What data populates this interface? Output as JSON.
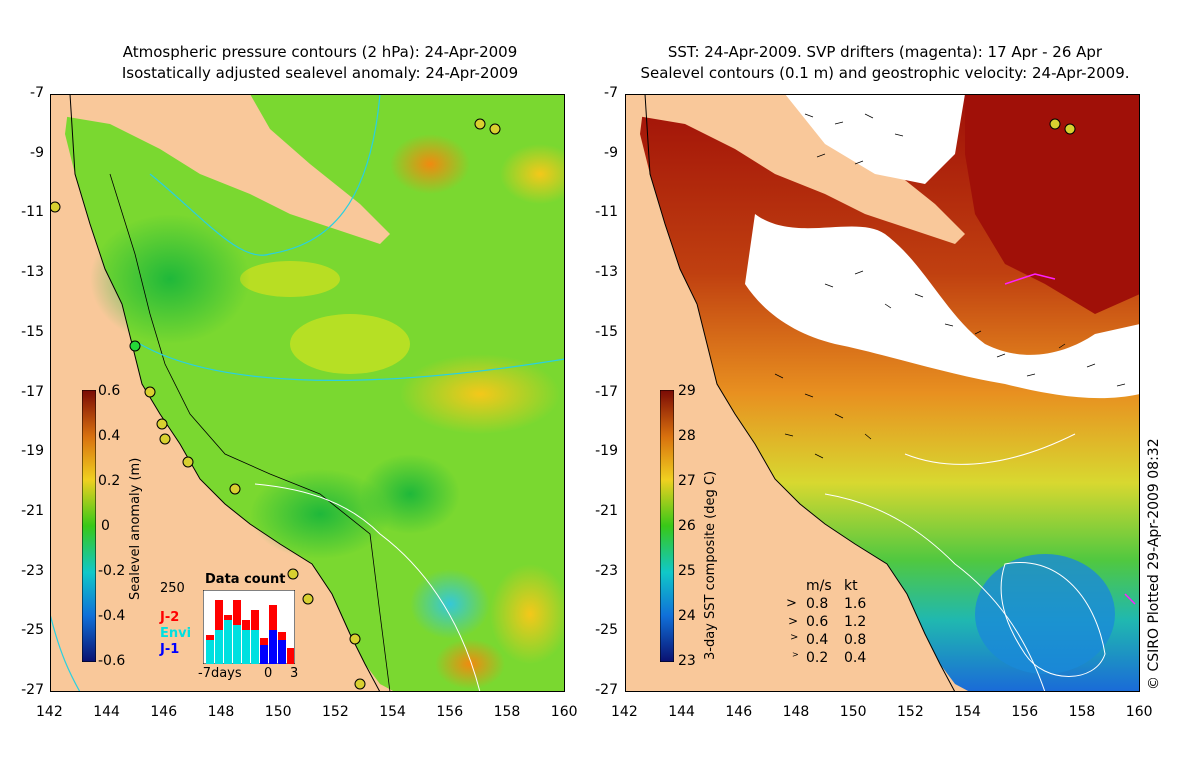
{
  "left_panel": {
    "title_line1": "Atmospheric pressure contours (2 hPa): 24-Apr-2009",
    "title_line2": "Isostatically adjusted sealevel anomaly: 24-Apr-2009",
    "colorbar_label": "Sealevel anomaly (m)",
    "colorbar_ticks": [
      "0.6",
      "0.4",
      "0.2",
      "0",
      "-0.2",
      "-0.4",
      "-0.6"
    ],
    "data_count": {
      "title": "Data count",
      "ymax_label": "250",
      "legend": [
        {
          "name": "J-2",
          "color": "#ff0000"
        },
        {
          "name": "Envi",
          "color": "#00e0e0"
        },
        {
          "name": "J-1",
          "color": "#0000ff"
        }
      ],
      "xlabels": [
        "-7days",
        "0",
        "3"
      ]
    }
  },
  "right_panel": {
    "title_line1": "SST: 24-Apr-2009. SVP drifters (magenta): 17 Apr - 26 Apr",
    "title_line2": "Sealevel contours (0.1 m) and geostrophic velocity: 24-Apr-2009.",
    "colorbar_label": "3-day SST composite (deg C)",
    "colorbar_ticks": [
      "29",
      "28",
      "27",
      "26",
      "25",
      "24",
      "23"
    ],
    "velocity_legend": {
      "header_ms": "m/s",
      "header_kt": "kt",
      "rows": [
        {
          "ms": "0.8",
          "kt": "1.6"
        },
        {
          "ms": "0.6",
          "kt": "1.2"
        },
        {
          "ms": "0.4",
          "kt": "0.8"
        },
        {
          "ms": "0.2",
          "kt": "0.4"
        }
      ]
    }
  },
  "axes": {
    "y_ticks": [
      "-7",
      "-9",
      "-11",
      "-13",
      "-15",
      "-17",
      "-19",
      "-21",
      "-23",
      "-25",
      "-27"
    ],
    "x_ticks": [
      "142",
      "144",
      "146",
      "148",
      "150",
      "152",
      "154",
      "156",
      "158",
      "160"
    ]
  },
  "credit": "© CSIRO Plotted 29-Apr-2009 08:32",
  "colors": {
    "land": "#f9c89a",
    "sea_green": "#6ddc2a",
    "sea_yellow": "#d6e81a",
    "sst_red": "#a01008",
    "sst_blue": "#1a8ad8"
  }
}
